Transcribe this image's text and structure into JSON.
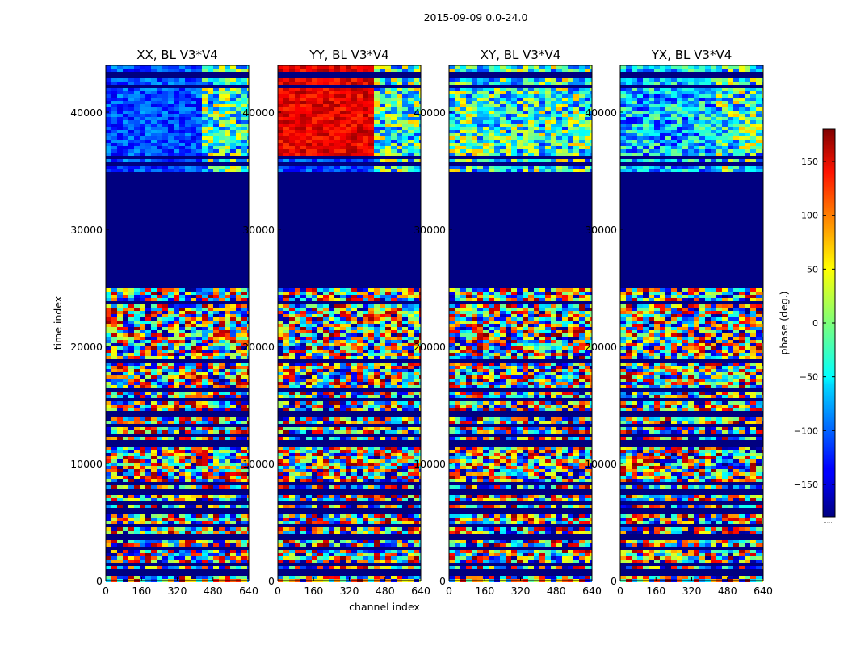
{
  "figure": {
    "suptitle": "2015-09-09 0.0-24.0"
  },
  "chart_data": {
    "type": "heatmap",
    "xlabel": "channel index",
    "ylabel": "time index",
    "xlim": [
      0,
      640
    ],
    "ylim": [
      0,
      44000
    ],
    "x_ticks": [
      0,
      160,
      320,
      480,
      640
    ],
    "y_ticks": [
      0,
      10000,
      20000,
      30000,
      40000
    ],
    "colormap": "jet",
    "colorbar": {
      "label": "phase (deg.)",
      "range": [
        -180,
        180
      ],
      "ticks": [
        -150,
        -100,
        -50,
        0,
        50,
        100,
        150
      ],
      "tick_labels": [
        "−150",
        "−100",
        "−50",
        "0",
        "50",
        "100",
        "150"
      ],
      "extra_text": "......"
    },
    "flagged_time_range": [
      25000,
      34800
    ],
    "panels": [
      {
        "title": "XX, BL V3*V4",
        "bias_label": "blue phases around -120 deg above 35000"
      },
      {
        "title": "YY, BL V3*V4",
        "bias_label": "red phases around 160 deg above 35000"
      },
      {
        "title": "XY, BL V3*V4",
        "bias_label": "mixed phases"
      },
      {
        "title": "YX, BL V3*V4",
        "bias_label": "mixed phases"
      }
    ]
  }
}
